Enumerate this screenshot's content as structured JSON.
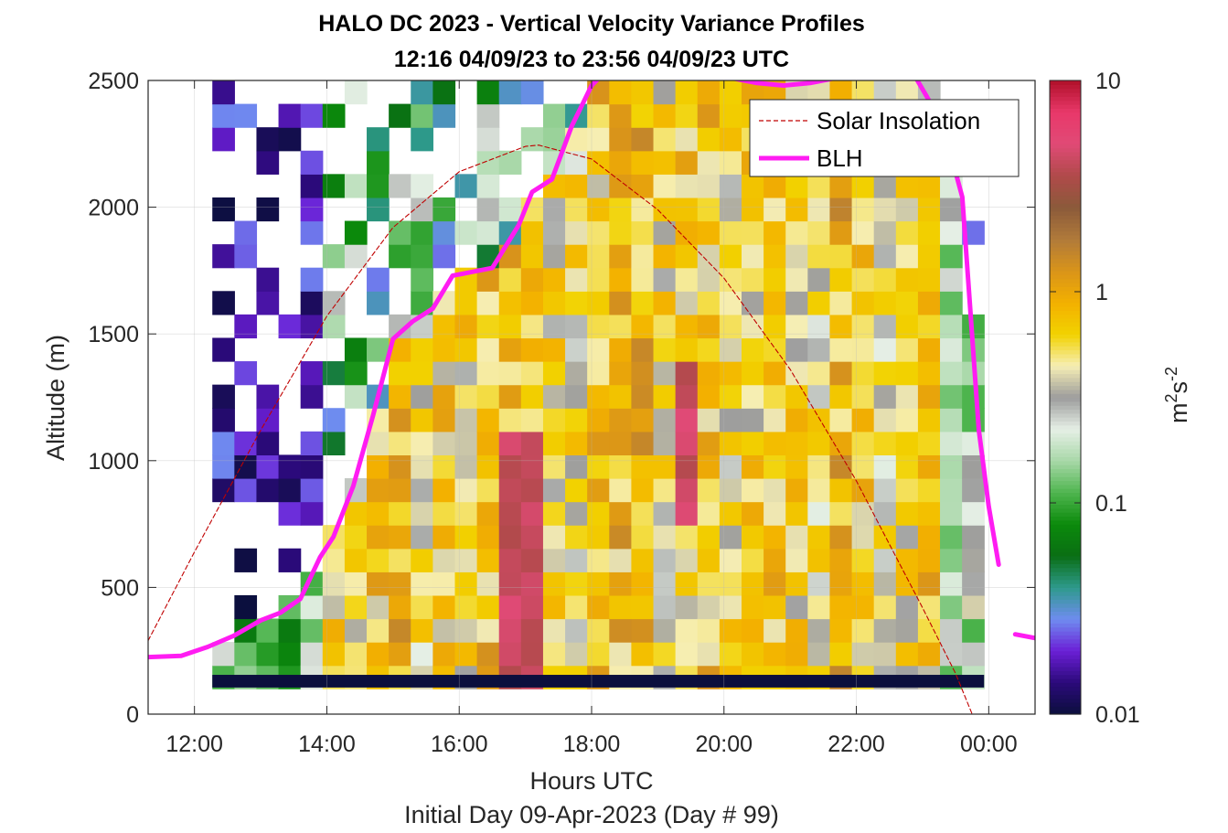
{
  "title": {
    "line1": "HALO DC 2023 - Vertical Velocity Variance Profiles",
    "line2": "12:16 04/09/23 to 23:56 04/09/23  UTC"
  },
  "chart_data": {
    "type": "heatmap",
    "xlabel": "Hours UTC",
    "subxlabel": "Initial Day 09-Apr-2023 (Day # 99)",
    "ylabel": "Altitude (m)",
    "xlim_hours": [
      11.3,
      24.7
    ],
    "ylim": [
      0,
      2500
    ],
    "x_tick_hours": [
      12,
      14,
      16,
      18,
      20,
      22,
      24
    ],
    "x_tick_labels": [
      "12:00",
      "14:00",
      "16:00",
      "18:00",
      "20:00",
      "22:00",
      "00:00"
    ],
    "y_ticks": [
      0,
      500,
      1000,
      1500,
      2000,
      2500
    ],
    "y_tick_labels": [
      "0",
      "500",
      "1000",
      "1500",
      "2000",
      "2500"
    ],
    "grid": true,
    "legend_position": "top-right",
    "colorbar": {
      "label": "m²s⁻²",
      "label_base": "m",
      "label_exp1": "2",
      "label_mid": "s",
      "label_exp2": "-2",
      "scale": "log",
      "range": [
        0.01,
        10
      ],
      "tick_values": [
        0.01,
        0.1,
        1,
        10
      ],
      "tick_labels": [
        "0.01",
        "0.1",
        "1",
        "10"
      ],
      "stops": [
        "#0b0f3d",
        "#2b0a7a",
        "#6b1fd6",
        "#6f8cf0",
        "#2e9a8c",
        "#0a6e14",
        "#0b8a0b",
        "#4fb54f",
        "#a8d8a8",
        "#e6efe6",
        "#9c9c9c",
        "#f6eeb4",
        "#f2d200",
        "#f3b000",
        "#d9941a",
        "#b07a3a",
        "#8b5a3a",
        "#b04a4a",
        "#e04a76",
        "#e8386a",
        "#b0102a"
      ]
    },
    "heatmap": {
      "start_hour": 12.27,
      "end_hour": 23.93,
      "columns": 35,
      "alt_min": 100,
      "alt_max": 2500,
      "rows": 26,
      "lowest_gate_alt": 130,
      "lowest_gate_value": 0.01,
      "value_range": [
        0.01,
        10
      ],
      "scale": "log"
    },
    "series": [
      {
        "name": "Solar Insolation",
        "style": "dashed",
        "color": "#c00000",
        "x": [
          11.3,
          12.0,
          13.0,
          14.0,
          15.0,
          16.0,
          17.0,
          17.2,
          18.0,
          19.0,
          20.0,
          21.0,
          22.0,
          23.0,
          23.5,
          23.75,
          24.7
        ],
        "y": [
          290,
          640,
          1120,
          1570,
          1920,
          2140,
          2240,
          2245,
          2190,
          1990,
          1720,
          1360,
          920,
          420,
          160,
          0,
          0
        ]
      },
      {
        "name": "BLH",
        "style": "solid",
        "color": "#ff1cf2",
        "x": [
          11.3,
          11.8,
          12.2,
          12.6,
          13.0,
          13.3,
          13.6,
          13.9,
          14.1,
          14.4,
          14.7,
          15.0,
          15.3,
          15.6,
          15.9,
          16.1,
          16.5,
          16.9,
          17.1,
          17.4,
          17.7,
          18.0,
          18.3,
          18.6,
          18.9,
          19.3,
          19.7,
          20.1,
          20.5,
          20.9,
          21.3,
          21.7,
          22.1,
          22.5,
          22.9,
          23.3,
          23.6,
          23.85,
          24.0,
          24.15
        ],
        "y": [
          225,
          230,
          265,
          310,
          370,
          400,
          455,
          620,
          700,
          900,
          1180,
          1480,
          1550,
          1600,
          1730,
          1740,
          1760,
          1930,
          2060,
          2110,
          2320,
          2480,
          2560,
          2590,
          2620,
          2600,
          2560,
          2510,
          2490,
          2480,
          2490,
          2510,
          2560,
          2600,
          2510,
          2330,
          2040,
          1120,
          820,
          590
        ]
      },
      {
        "name": "",
        "style": "solid",
        "color": "#ff1cf2",
        "x": [
          24.4,
          24.7
        ],
        "y": [
          315,
          300
        ]
      }
    ]
  }
}
